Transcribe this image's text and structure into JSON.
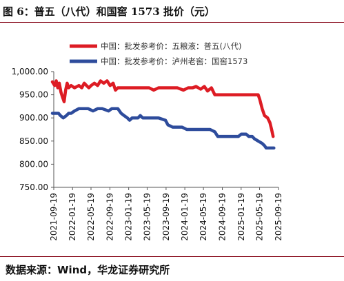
{
  "title": "图 6：普五（八代）和国窖 1573 批价（元）",
  "source": "数据来源：Wind，华龙证券研究所",
  "chart_data": {
    "type": "line",
    "ylim": [
      750,
      1000
    ],
    "yticks": [
      "1,000.00",
      "950.00",
      "900.00",
      "850.00",
      "800.00",
      "750.00"
    ],
    "ytick_values": [
      1000,
      950,
      900,
      850,
      800,
      750
    ],
    "xlim": [
      "2021-09-19",
      "2025-09-19"
    ],
    "xticks": [
      "2021-09-19",
      "2022-01-19",
      "2022-05-19",
      "2022-09-19",
      "2023-01-19",
      "2023-05-19",
      "2023-09-19",
      "2024-01-19",
      "2024-05-19",
      "2024-09-19",
      "2025-01-19",
      "2025-05-19",
      "2025-09-19"
    ],
    "grid": false,
    "legend_placement": "top-center",
    "series": [
      {
        "name": "中国：批发参考价：五粮液：普五(八代)",
        "color": "#dd1c24",
        "points": [
          [
            "2021-09-10",
            978
          ],
          [
            "2021-09-25",
            970
          ],
          [
            "2021-10-05",
            980
          ],
          [
            "2021-10-15",
            965
          ],
          [
            "2021-10-25",
            975
          ],
          [
            "2021-11-05",
            955
          ],
          [
            "2021-11-15",
            945
          ],
          [
            "2021-11-25",
            935
          ],
          [
            "2021-12-05",
            960
          ],
          [
            "2021-12-15",
            975
          ],
          [
            "2021-12-25",
            965
          ],
          [
            "2022-01-10",
            970
          ],
          [
            "2022-02-01",
            965
          ],
          [
            "2022-03-01",
            970
          ],
          [
            "2022-03-20",
            965
          ],
          [
            "2022-04-05",
            975
          ],
          [
            "2022-04-20",
            970
          ],
          [
            "2022-05-05",
            965
          ],
          [
            "2022-05-20",
            970
          ],
          [
            "2022-06-10",
            975
          ],
          [
            "2022-07-01",
            970
          ],
          [
            "2022-07-20",
            980
          ],
          [
            "2022-08-10",
            975
          ],
          [
            "2022-09-01",
            980
          ],
          [
            "2022-09-20",
            970
          ],
          [
            "2022-10-10",
            975
          ],
          [
            "2022-10-25",
            960
          ],
          [
            "2022-11-10",
            965
          ],
          [
            "2022-12-10",
            965
          ],
          [
            "2023-02-01",
            965
          ],
          [
            "2023-04-01",
            965
          ],
          [
            "2023-06-01",
            965
          ],
          [
            "2023-07-01",
            960
          ],
          [
            "2023-08-01",
            965
          ],
          [
            "2023-10-01",
            965
          ],
          [
            "2023-12-01",
            965
          ],
          [
            "2024-01-10",
            960
          ],
          [
            "2024-02-10",
            965
          ],
          [
            "2024-03-10",
            965
          ],
          [
            "2024-04-01",
            968
          ],
          [
            "2024-05-01",
            962
          ],
          [
            "2024-05-25",
            968
          ],
          [
            "2024-06-15",
            958
          ],
          [
            "2024-07-10",
            965
          ],
          [
            "2024-08-01",
            950
          ],
          [
            "2024-10-01",
            950
          ],
          [
            "2024-12-01",
            950
          ],
          [
            "2025-02-01",
            950
          ],
          [
            "2025-04-01",
            950
          ],
          [
            "2025-05-10",
            950
          ],
          [
            "2025-05-20",
            940
          ],
          [
            "2025-06-05",
            920
          ],
          [
            "2025-06-20",
            905
          ],
          [
            "2025-07-10",
            900
          ],
          [
            "2025-07-25",
            890
          ],
          [
            "2025-08-05",
            875
          ],
          [
            "2025-08-15",
            860
          ]
        ]
      },
      {
        "name": "中国：批发参考价：泸州老窖：国窖1573",
        "color": "#2e4c9c",
        "points": [
          [
            "2021-09-10",
            910
          ],
          [
            "2021-10-20",
            910
          ],
          [
            "2021-11-01",
            905
          ],
          [
            "2021-11-20",
            900
          ],
          [
            "2021-12-10",
            905
          ],
          [
            "2021-12-25",
            910
          ],
          [
            "2022-01-10",
            910
          ],
          [
            "2022-02-01",
            915
          ],
          [
            "2022-03-01",
            920
          ],
          [
            "2022-05-01",
            920
          ],
          [
            "2022-06-01",
            915
          ],
          [
            "2022-07-01",
            920
          ],
          [
            "2022-08-01",
            920
          ],
          [
            "2022-09-10",
            915
          ],
          [
            "2022-10-01",
            920
          ],
          [
            "2022-11-10",
            920
          ],
          [
            "2022-12-01",
            910
          ],
          [
            "2022-12-20",
            905
          ],
          [
            "2023-01-10",
            900
          ],
          [
            "2023-01-25",
            895
          ],
          [
            "2023-02-10",
            900
          ],
          [
            "2023-03-20",
            900
          ],
          [
            "2023-04-05",
            905
          ],
          [
            "2023-04-20",
            900
          ],
          [
            "2023-06-01",
            900
          ],
          [
            "2023-08-01",
            900
          ],
          [
            "2023-09-15",
            895
          ],
          [
            "2023-10-01",
            885
          ],
          [
            "2023-11-01",
            880
          ],
          [
            "2024-01-01",
            880
          ],
          [
            "2024-02-01",
            875
          ],
          [
            "2024-06-01",
            875
          ],
          [
            "2024-07-01",
            875
          ],
          [
            "2024-08-01",
            870
          ],
          [
            "2024-08-20",
            860
          ],
          [
            "2024-11-01",
            860
          ],
          [
            "2025-01-01",
            860
          ],
          [
            "2025-01-20",
            865
          ],
          [
            "2025-02-20",
            865
          ],
          [
            "2025-03-10",
            860
          ],
          [
            "2025-04-01",
            860
          ],
          [
            "2025-04-15",
            855
          ],
          [
            "2025-05-10",
            850
          ],
          [
            "2025-06-05",
            845
          ],
          [
            "2025-06-20",
            840
          ],
          [
            "2025-07-01",
            835
          ],
          [
            "2025-08-20",
            835
          ]
        ]
      }
    ]
  }
}
